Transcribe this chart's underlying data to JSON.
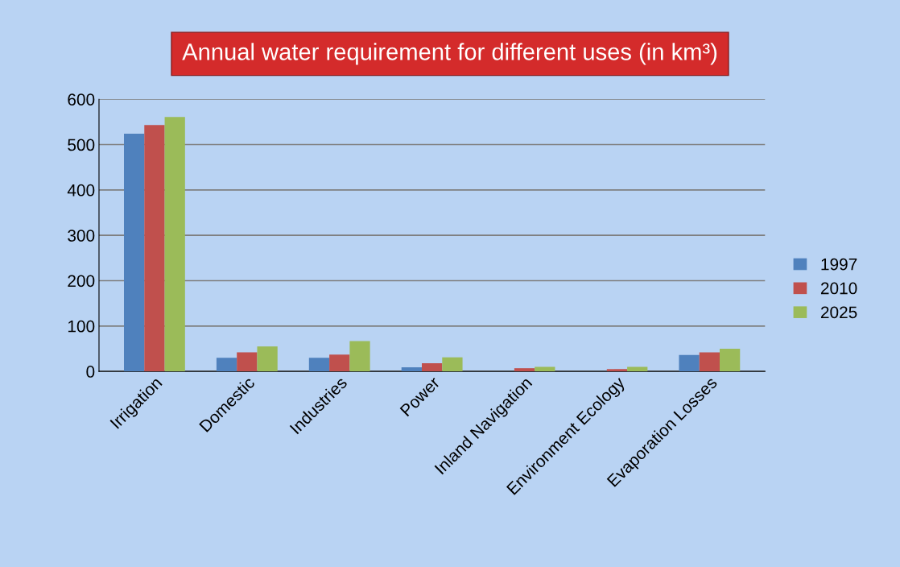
{
  "chart_data": {
    "type": "bar",
    "title": "Annual water requirement for different uses (in km³)",
    "categories": [
      "Irrigation",
      "Domestic",
      "Industries",
      "Power",
      "Inland Navigation",
      "Environment Ecology",
      "Evaporation Losses"
    ],
    "series": [
      {
        "name": "1997",
        "color": "#4f81bd",
        "values": [
          524,
          30,
          30,
          9,
          0,
          0,
          36
        ]
      },
      {
        "name": "2010",
        "color": "#c0504d",
        "values": [
          543,
          42,
          37,
          18,
          7,
          5,
          42
        ]
      },
      {
        "name": "2025",
        "color": "#9bbb59",
        "values": [
          561,
          55,
          67,
          31,
          10,
          10,
          50
        ]
      }
    ],
    "ylim": [
      0,
      600
    ],
    "yticks": [
      0,
      100,
      200,
      300,
      400,
      500,
      600
    ],
    "grid": "y",
    "legend": "right"
  }
}
